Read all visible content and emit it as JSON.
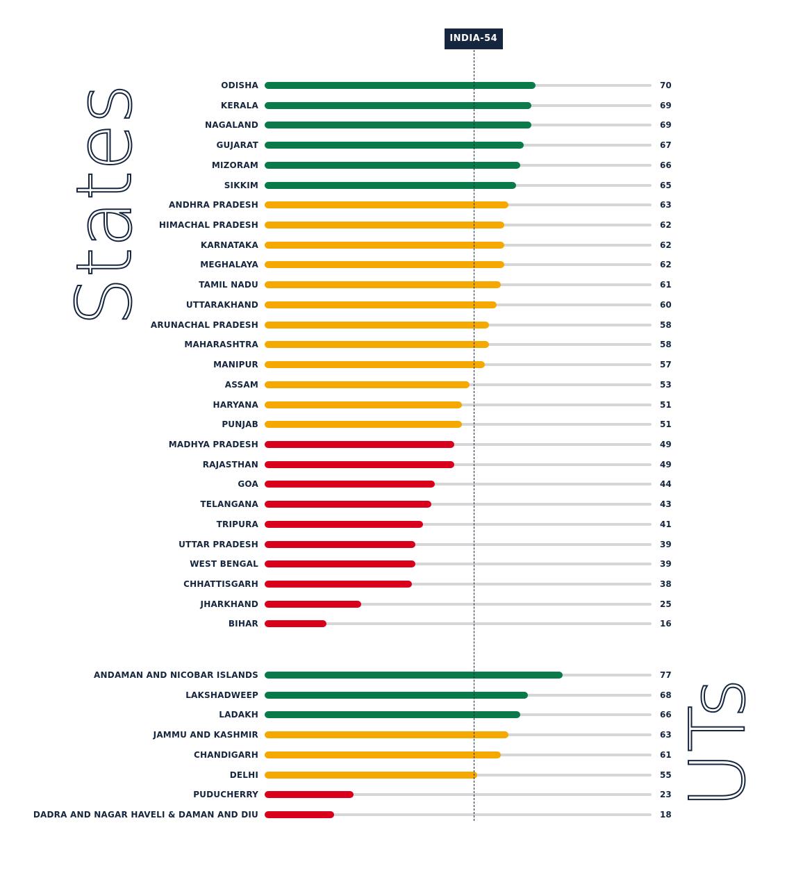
{
  "chart_data": {
    "type": "bar",
    "orientation": "horizontal",
    "xlim": [
      0,
      100
    ],
    "colors": {
      "green": "#0b7a4b",
      "orange": "#f5a800",
      "red": "#d9001b",
      "track": "#d6d6d6",
      "text": "#16263f"
    },
    "reference": {
      "label": "INDIA-54",
      "value": 54
    },
    "groups": [
      {
        "title": "States",
        "items": [
          {
            "name": "ODISHA",
            "value": 70,
            "color": "green"
          },
          {
            "name": "KERALA",
            "value": 69,
            "color": "green"
          },
          {
            "name": "NAGALAND",
            "value": 69,
            "color": "green"
          },
          {
            "name": "GUJARAT",
            "value": 67,
            "color": "green"
          },
          {
            "name": "MIZORAM",
            "value": 66,
            "color": "green"
          },
          {
            "name": "SIKKIM",
            "value": 65,
            "color": "green"
          },
          {
            "name": "ANDHRA PRADESH",
            "value": 63,
            "color": "orange"
          },
          {
            "name": "HIMACHAL PRADESH",
            "value": 62,
            "color": "orange"
          },
          {
            "name": "KARNATAKA",
            "value": 62,
            "color": "orange"
          },
          {
            "name": "MEGHALAYA",
            "value": 62,
            "color": "orange"
          },
          {
            "name": "TAMIL NADU",
            "value": 61,
            "color": "orange"
          },
          {
            "name": "UTTARAKHAND",
            "value": 60,
            "color": "orange"
          },
          {
            "name": "ARUNACHAL PRADESH",
            "value": 58,
            "color": "orange"
          },
          {
            "name": "MAHARASHTRA",
            "value": 58,
            "color": "orange"
          },
          {
            "name": "MANIPUR",
            "value": 57,
            "color": "orange"
          },
          {
            "name": "ASSAM",
            "value": 53,
            "color": "orange"
          },
          {
            "name": "HARYANA",
            "value": 51,
            "color": "orange"
          },
          {
            "name": "PUNJAB",
            "value": 51,
            "color": "orange"
          },
          {
            "name": "MADHYA PRADESH",
            "value": 49,
            "color": "red"
          },
          {
            "name": "RAJASTHAN",
            "value": 49,
            "color": "red"
          },
          {
            "name": "GOA",
            "value": 44,
            "color": "red"
          },
          {
            "name": "TELANGANA",
            "value": 43,
            "color": "red"
          },
          {
            "name": "TRIPURA",
            "value": 41,
            "color": "red"
          },
          {
            "name": "UTTAR PRADESH",
            "value": 39,
            "color": "red"
          },
          {
            "name": "WEST BENGAL",
            "value": 39,
            "color": "red"
          },
          {
            "name": "CHHATTISGARH",
            "value": 38,
            "color": "red"
          },
          {
            "name": "JHARKHAND",
            "value": 25,
            "color": "red"
          },
          {
            "name": "BIHAR",
            "value": 16,
            "color": "red"
          }
        ]
      },
      {
        "title": "UTs",
        "items": [
          {
            "name": "ANDAMAN AND NICOBAR ISLANDS",
            "value": 77,
            "color": "green"
          },
          {
            "name": "LAKSHADWEEP",
            "value": 68,
            "color": "green"
          },
          {
            "name": "LADAKH",
            "value": 66,
            "color": "green"
          },
          {
            "name": "JAMMU AND KASHMIR",
            "value": 63,
            "color": "orange"
          },
          {
            "name": "CHANDIGARH",
            "value": 61,
            "color": "orange"
          },
          {
            "name": "DELHI",
            "value": 55,
            "color": "orange"
          },
          {
            "name": "PUDUCHERRY",
            "value": 23,
            "color": "red"
          },
          {
            "name": "DADRA AND NAGAR HAVELI & DAMAN AND DIU",
            "value": 18,
            "color": "red"
          }
        ]
      }
    ]
  }
}
